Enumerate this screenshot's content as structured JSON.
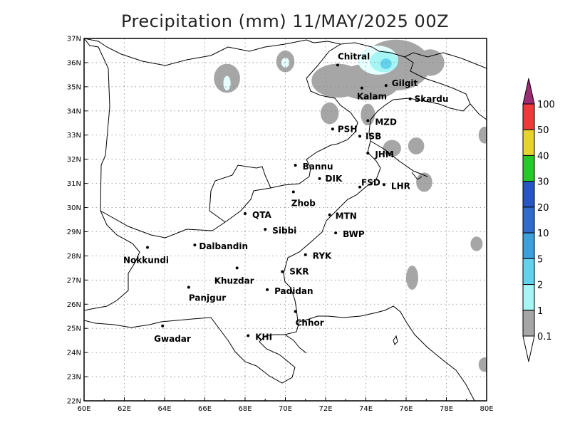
{
  "title": "Precipitation (mm) 11/MAY/2025 00Z",
  "map": {
    "lon_range": [
      60,
      80
    ],
    "lat_range": [
      22,
      37
    ],
    "lon_ticks": [
      "60E",
      "62E",
      "64E",
      "66E",
      "68E",
      "70E",
      "72E",
      "74E",
      "76E",
      "78E",
      "80E"
    ],
    "lat_ticks": [
      "22N",
      "23N",
      "24N",
      "25N",
      "26N",
      "27N",
      "28N",
      "29N",
      "30N",
      "31N",
      "32N",
      "33N",
      "34N",
      "35N",
      "36N",
      "37N"
    ],
    "grid": true
  },
  "cities": [
    {
      "name": "Chitral",
      "lon": 72.6,
      "lat": 35.9
    },
    {
      "name": "Gilgit",
      "lon": 75.0,
      "lat": 35.05
    },
    {
      "name": "Kalam",
      "lon": 73.8,
      "lat": 34.95
    },
    {
      "name": "Skardu",
      "lon": 76.2,
      "lat": 34.5
    },
    {
      "name": "MZD",
      "lon": 74.1,
      "lat": 33.6
    },
    {
      "name": "PSH",
      "lon": 72.35,
      "lat": 33.25
    },
    {
      "name": "ISB",
      "lon": 73.7,
      "lat": 32.95
    },
    {
      "name": "JHM",
      "lon": 74.1,
      "lat": 32.25
    },
    {
      "name": "Bannu",
      "lon": 70.5,
      "lat": 31.75
    },
    {
      "name": "DIK",
      "lon": 71.7,
      "lat": 31.2
    },
    {
      "name": "FSD",
      "lon": 73.7,
      "lat": 30.85
    },
    {
      "name": "LHR",
      "lon": 74.9,
      "lat": 30.95
    },
    {
      "name": "Zhob",
      "lon": 70.4,
      "lat": 30.65
    },
    {
      "name": "QTA",
      "lon": 68.0,
      "lat": 29.75
    },
    {
      "name": "MTN",
      "lon": 72.2,
      "lat": 29.7
    },
    {
      "name": "Sibbi",
      "lon": 69.0,
      "lat": 29.1
    },
    {
      "name": "BWP",
      "lon": 72.5,
      "lat": 28.95
    },
    {
      "name": "Nokkundi",
      "lon": 63.15,
      "lat": 28.35
    },
    {
      "name": "Dalbandin",
      "lon": 65.5,
      "lat": 28.45
    },
    {
      "name": "RYK",
      "lon": 71.0,
      "lat": 28.05
    },
    {
      "name": "SKR",
      "lon": 69.85,
      "lat": 27.35
    },
    {
      "name": "Khuzdar",
      "lon": 67.6,
      "lat": 27.5
    },
    {
      "name": "Padidan",
      "lon": 69.1,
      "lat": 26.6
    },
    {
      "name": "Panjgur",
      "lon": 65.2,
      "lat": 26.7
    },
    {
      "name": "Chhor",
      "lon": 70.5,
      "lat": 25.7
    },
    {
      "name": "Gwadar",
      "lon": 63.9,
      "lat": 25.1
    },
    {
      "name": "KHI",
      "lon": 68.15,
      "lat": 24.7
    }
  ],
  "precip_areas": [
    {
      "level": "0.1",
      "lon": 67.1,
      "lat": 35.35,
      "rx": 0.65,
      "ry": 0.6
    },
    {
      "level": "0.1",
      "lon": 70.0,
      "lat": 36.05,
      "rx": 0.45,
      "ry": 0.45
    },
    {
      "level": "0.1",
      "lon": 72.2,
      "lat": 33.9,
      "rx": 0.45,
      "ry": 0.45
    },
    {
      "level": "0.1",
      "lon": 74.1,
      "lat": 33.85,
      "rx": 0.35,
      "ry": 0.45
    },
    {
      "level": "0.1",
      "lon": 74.1,
      "lat": 35.2,
      "rx": 1.6,
      "ry": 0.75
    },
    {
      "level": "0.1",
      "lon": 72.6,
      "lat": 35.25,
      "rx": 1.3,
      "ry": 0.7
    },
    {
      "level": "0.1",
      "lon": 75.5,
      "lat": 35.9,
      "rx": 1.7,
      "ry": 1.05
    },
    {
      "level": "0.1",
      "lon": 77.2,
      "lat": 36.0,
      "rx": 0.7,
      "ry": 0.55
    },
    {
      "level": "0.1",
      "lon": 75.3,
      "lat": 32.45,
      "rx": 0.45,
      "ry": 0.35
    },
    {
      "level": "0.1",
      "lon": 76.5,
      "lat": 32.55,
      "rx": 0.4,
      "ry": 0.35
    },
    {
      "level": "0.1",
      "lon": 76.9,
      "lat": 31.05,
      "rx": 0.4,
      "ry": 0.4
    },
    {
      "level": "0.1",
      "lon": 79.9,
      "lat": 33.0,
      "rx": 0.3,
      "ry": 0.35
    },
    {
      "level": "0.1",
      "lon": 79.5,
      "lat": 28.5,
      "rx": 0.3,
      "ry": 0.3
    },
    {
      "level": "0.1",
      "lon": 76.3,
      "lat": 27.1,
      "rx": 0.3,
      "ry": 0.5
    },
    {
      "level": "0.1",
      "lon": 79.9,
      "lat": 23.5,
      "rx": 0.3,
      "ry": 0.3
    },
    {
      "level": "1",
      "lon": 67.1,
      "lat": 35.15,
      "rx": 0.18,
      "ry": 0.3
    },
    {
      "level": "1",
      "lon": 70.0,
      "lat": 36.0,
      "rx": 0.2,
      "ry": 0.2
    },
    {
      "level": "1",
      "lon": 74.6,
      "lat": 36.1,
      "rx": 1.0,
      "ry": 0.6
    },
    {
      "level": "2",
      "lon": 74.9,
      "lat": 36.05,
      "rx": 0.7,
      "ry": 0.45
    },
    {
      "level": "5",
      "lon": 75.0,
      "lat": 35.95,
      "rx": 0.28,
      "ry": 0.22
    }
  ],
  "colorbar": {
    "levels": [
      "0.1",
      "1",
      "2",
      "5",
      "10",
      "20",
      "30",
      "40",
      "50",
      "100"
    ],
    "colors": [
      "#a6a6a6",
      "#e6ffff",
      "#a5f5f5",
      "#62d2ed",
      "#3ca0dc",
      "#2f6ccc",
      "#2756c4",
      "#28c828",
      "#e6d232",
      "#eb3c3c",
      "#9b2d73"
    ]
  }
}
